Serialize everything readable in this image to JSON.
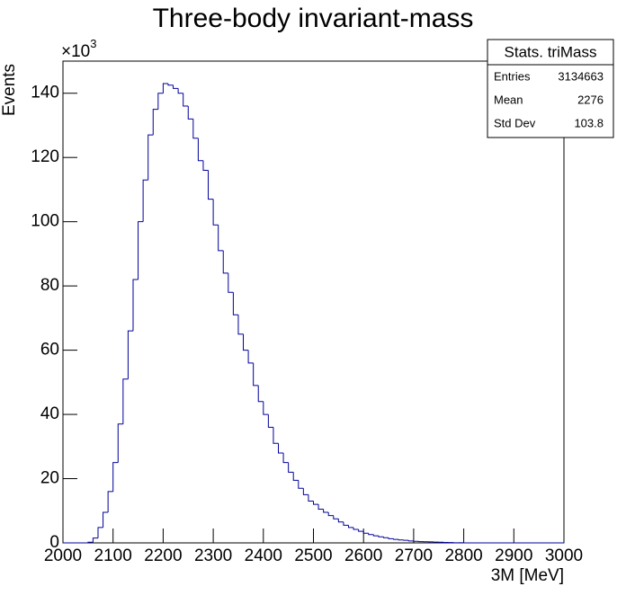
{
  "chart_data": {
    "type": "histogram",
    "title": "Three-body invariant-mass",
    "x_label": "3M [MeV]",
    "y_label": "Events",
    "y_multiplier": {
      "base": "×10",
      "exponent": "3"
    },
    "color": "#000099",
    "bins": [
      2000,
      2010,
      2020,
      2030,
      2040,
      2050,
      2060,
      2070,
      2080,
      2090,
      2100,
      2110,
      2120,
      2130,
      2140,
      2150,
      2160,
      2170,
      2180,
      2190,
      2200,
      2210,
      2220,
      2230,
      2240,
      2250,
      2260,
      2270,
      2280,
      2290,
      2300,
      2310,
      2320,
      2330,
      2340,
      2350,
      2360,
      2370,
      2380,
      2390,
      2400,
      2410,
      2420,
      2430,
      2440,
      2450,
      2460,
      2470,
      2480,
      2490,
      2500,
      2510,
      2520,
      2530,
      2540,
      2550,
      2560,
      2570,
      2580,
      2590,
      2600,
      2610,
      2620,
      2630,
      2640,
      2650,
      2660,
      2670,
      2680,
      2690,
      2700,
      2710,
      2720,
      2730,
      2740,
      2750,
      2760,
      2770,
      2780,
      2790,
      2800,
      2810,
      2820,
      2830,
      2840,
      2850,
      2860,
      2870,
      2880,
      2890,
      2900,
      2910,
      2920,
      2930,
      2940,
      2950,
      2960,
      2970,
      2980,
      2990,
      3000
    ],
    "counts": [
      0,
      0,
      0,
      0,
      0,
      0.2,
      1.5,
      4.8,
      9.5,
      16,
      25,
      37,
      51,
      66,
      82,
      100,
      113,
      127,
      135,
      140,
      143,
      142.5,
      141.5,
      140,
      136,
      132,
      126,
      119,
      116,
      107,
      99,
      91,
      84,
      78,
      71,
      65,
      60,
      56,
      49,
      44,
      40,
      36,
      31,
      28,
      25,
      22,
      19.5,
      17,
      15,
      13,
      12,
      10.5,
      9.5,
      8.5,
      7.5,
      6.5,
      5.5,
      4.8,
      4.2,
      3.6,
      3,
      2.6,
      2.2,
      1.9,
      1.6,
      1.3,
      1.1,
      0.9,
      0.8,
      0.6,
      0.5,
      0.4,
      0.35,
      0.3,
      0.25,
      0.2,
      0.15,
      0.1,
      0.05,
      0.05,
      0,
      0,
      0,
      0,
      0,
      0,
      0,
      0,
      0,
      0,
      0,
      0,
      0,
      0,
      0,
      0,
      0,
      0,
      0,
      0
    ],
    "xlim": [
      2000,
      3000
    ],
    "ylim": [
      0,
      150
    ],
    "xticks": [
      2000,
      2100,
      2200,
      2300,
      2400,
      2500,
      2600,
      2700,
      2800,
      2900,
      3000
    ],
    "yticks": [
      0,
      20,
      40,
      60,
      80,
      100,
      120,
      140
    ],
    "stats": {
      "title": "Stats. triMass",
      "rows": [
        [
          "Entries",
          3134663
        ],
        [
          "Mean",
          2276
        ],
        [
          "Std Dev",
          103.8
        ]
      ]
    }
  }
}
